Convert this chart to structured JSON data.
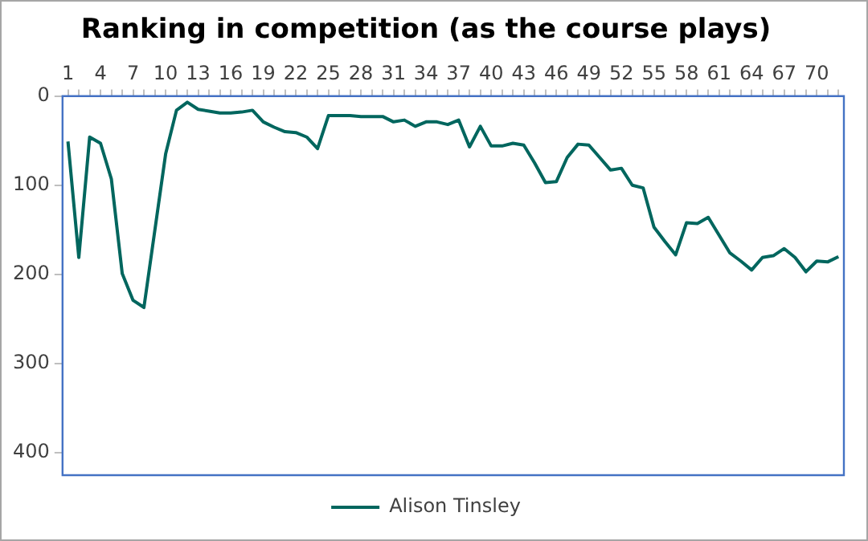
{
  "chart_data": {
    "type": "line",
    "title": "Ranking in competition (as the course plays)",
    "categories": [
      "1",
      null,
      null,
      "4",
      null,
      null,
      "7",
      null,
      null,
      "10",
      null,
      null,
      "13",
      null,
      null,
      "16",
      null,
      null,
      "19",
      null,
      null,
      "22",
      null,
      null,
      "25",
      null,
      null,
      "28",
      null,
      null,
      "31",
      null,
      null,
      "34",
      null,
      null,
      "37",
      null,
      null,
      "40",
      null,
      null,
      "43",
      null,
      null,
      "46",
      null,
      null,
      "49",
      null,
      null,
      "52",
      null,
      null,
      "55",
      null,
      null,
      "58",
      null,
      null,
      "61",
      null,
      null,
      "64",
      null,
      null,
      "67",
      null,
      null,
      "70",
      null,
      null
    ],
    "series": [
      {
        "name": "Alison Tinsley",
        "color": "#00665e",
        "values": [
          51,
          181,
          46,
          53,
          93,
          199,
          229,
          237,
          151,
          65,
          16,
          7,
          15,
          17,
          19,
          19,
          18,
          16,
          29,
          35,
          40,
          41,
          46,
          59,
          22,
          22,
          22,
          23,
          23,
          23,
          29,
          27,
          34,
          29,
          29,
          32,
          27,
          57,
          34,
          56,
          56,
          53,
          55,
          75,
          97,
          96,
          69,
          54,
          55,
          69,
          83,
          81,
          100,
          103,
          147,
          163,
          178,
          142,
          143,
          136,
          156,
          176,
          185,
          195,
          181,
          179,
          171,
          181,
          197,
          185,
          186,
          180
        ]
      }
    ],
    "ylim": [
      425,
      0
    ],
    "yticks": [
      0,
      100,
      200,
      300,
      400
    ],
    "grid": false,
    "legend": "bottom",
    "marker": "none",
    "line_style": "solid"
  }
}
